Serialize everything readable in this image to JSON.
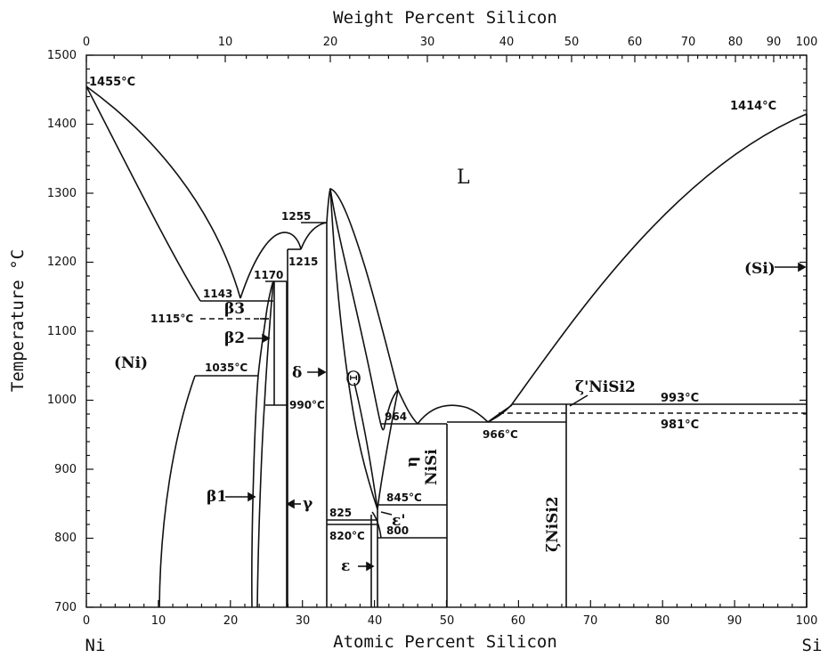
{
  "diagram": {
    "top_axis_title": "Weight Percent Silicon",
    "bottom_axis_title": "Atomic Percent Silicon",
    "y_axis_title": "Temperature °C",
    "left_element": "Ni",
    "right_element": "Si",
    "y_ticks": [
      "700",
      "800",
      "900",
      "1000",
      "1100",
      "1200",
      "1300",
      "1400",
      "1500"
    ],
    "bottom_ticks": [
      "0",
      "10",
      "20",
      "30",
      "40",
      "50",
      "60",
      "70",
      "80",
      "90",
      "100"
    ],
    "top_ticks": [
      "0",
      "10",
      "20",
      "30",
      "40",
      "50",
      "60",
      "70",
      "80",
      "90",
      "100"
    ],
    "annotations": {
      "t1455": "1455°C",
      "t1414": "1414°C",
      "t1143": "1143",
      "t1170": "1170",
      "t1115": "1115°C",
      "t1035": "1035°C",
      "t1255": "1255",
      "t1215": "1215",
      "t990": "990°C",
      "t964": "964",
      "t966": "966°C",
      "t993": "993°C",
      "t981": "981°C",
      "t845": "845°C",
      "t825": "825",
      "t820": "820°C",
      "t800": "800"
    },
    "phases": {
      "liquid": "L",
      "ni": "(Ni)",
      "si": "(Si)",
      "beta3": "β3",
      "beta2": "β2",
      "beta1": "β1",
      "gamma": "γ",
      "delta": "δ",
      "theta": "Θ",
      "eta": "η",
      "nisi": "NiSi",
      "zeta_prime": "ζ'NiSi2",
      "zeta": "ζNiSi2",
      "epsilon_prime": "ε'",
      "epsilon": "ε"
    },
    "x_range": [
      0,
      100
    ],
    "y_range": [
      700,
      1500
    ]
  }
}
